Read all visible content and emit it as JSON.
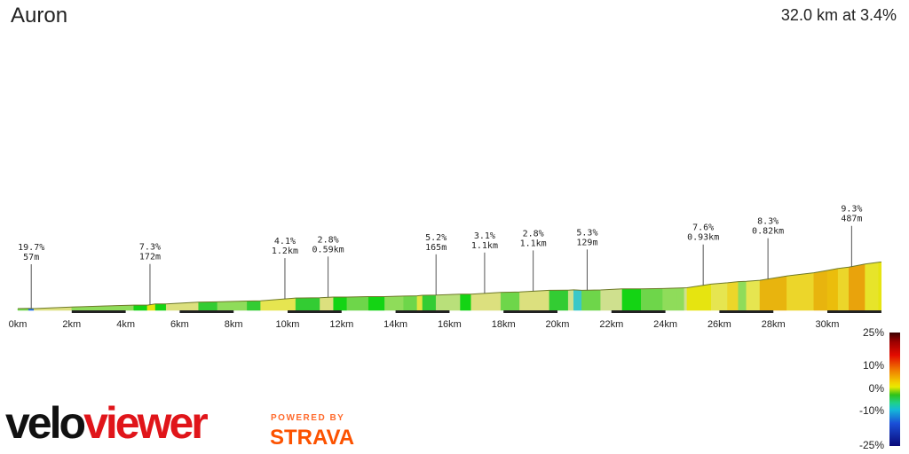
{
  "header": {
    "title": "Auron",
    "summary": "32.0 km at 3.4%"
  },
  "legend": {
    "ticks": [
      "25%",
      "10%",
      "0%",
      "-10%",
      "-25%"
    ]
  },
  "brand": {
    "velo": "velo",
    "viewer": "viewer",
    "powered_by": "POWERED BY",
    "strava": "STRAVA"
  },
  "chart_data": {
    "type": "area",
    "title": "Auron",
    "subtitle": "32.0 km at 3.4%",
    "x_unit": "km",
    "xlim": [
      0,
      32.0
    ],
    "x_ticks": [
      0,
      2,
      4,
      6,
      8,
      10,
      12,
      14,
      16,
      18,
      20,
      22,
      24,
      26,
      28,
      30
    ],
    "x_tick_labels": [
      "0km",
      "2km",
      "4km",
      "6km",
      "8km",
      "10km",
      "12km",
      "14km",
      "16km",
      "18km",
      "20km",
      "22km",
      "24km",
      "26km",
      "28km",
      "30km"
    ],
    "gradient_scale": {
      "min": -25,
      "max": 25,
      "labels": [
        "25%",
        "10%",
        "0%",
        "-10%",
        "-25%"
      ]
    },
    "segments": [
      {
        "x0": 0.0,
        "x1": 0.4,
        "grade": 1.0
      },
      {
        "x0": 0.4,
        "x1": 0.6,
        "grade": -8.0
      },
      {
        "x0": 0.6,
        "x1": 2.0,
        "grade": 3.0
      },
      {
        "x0": 2.0,
        "x1": 4.3,
        "grade": 1.5
      },
      {
        "x0": 4.3,
        "x1": 4.8,
        "grade": 0.0
      },
      {
        "x0": 4.8,
        "x1": 5.1,
        "grade": 7.3
      },
      {
        "x0": 5.1,
        "x1": 5.5,
        "grade": 0.0
      },
      {
        "x0": 5.5,
        "x1": 6.7,
        "grade": 3.0
      },
      {
        "x0": 6.7,
        "x1": 7.4,
        "grade": 0.5
      },
      {
        "x0": 7.4,
        "x1": 8.5,
        "grade": 1.5
      },
      {
        "x0": 8.5,
        "x1": 9.0,
        "grade": 0.5
      },
      {
        "x0": 9.0,
        "x1": 10.3,
        "grade": 4.1
      },
      {
        "x0": 10.3,
        "x1": 11.2,
        "grade": 0.5
      },
      {
        "x0": 11.2,
        "x1": 11.7,
        "grade": 2.8
      },
      {
        "x0": 11.7,
        "x1": 12.2,
        "grade": 0.0
      },
      {
        "x0": 12.2,
        "x1": 13.0,
        "grade": 1.0
      },
      {
        "x0": 13.0,
        "x1": 13.6,
        "grade": 0.0
      },
      {
        "x0": 13.6,
        "x1": 14.3,
        "grade": 1.5
      },
      {
        "x0": 14.3,
        "x1": 14.8,
        "grade": 1.0
      },
      {
        "x0": 14.8,
        "x1": 15.0,
        "grade": 5.2
      },
      {
        "x0": 15.0,
        "x1": 15.5,
        "grade": 0.5
      },
      {
        "x0": 15.5,
        "x1": 16.4,
        "grade": 2.0
      },
      {
        "x0": 16.4,
        "x1": 16.8,
        "grade": 0.0
      },
      {
        "x0": 16.8,
        "x1": 17.9,
        "grade": 3.1
      },
      {
        "x0": 17.9,
        "x1": 18.6,
        "grade": 1.0
      },
      {
        "x0": 18.6,
        "x1": 19.7,
        "grade": 2.8
      },
      {
        "x0": 19.7,
        "x1": 20.4,
        "grade": 0.5
      },
      {
        "x0": 20.4,
        "x1": 20.6,
        "grade": 2.5
      },
      {
        "x0": 20.6,
        "x1": 20.9,
        "grade": -3.0
      },
      {
        "x0": 20.9,
        "x1": 21.6,
        "grade": 1.0
      },
      {
        "x0": 21.6,
        "x1": 22.4,
        "grade": 2.5
      },
      {
        "x0": 22.4,
        "x1": 23.1,
        "grade": 0.0
      },
      {
        "x0": 23.1,
        "x1": 23.9,
        "grade": 1.0
      },
      {
        "x0": 23.9,
        "x1": 24.4,
        "grade": 1.5
      },
      {
        "x0": 24.4,
        "x1": 24.7,
        "grade": 1.5
      },
      {
        "x0": 24.7,
        "x1": 24.8,
        "grade": 2.5
      },
      {
        "x0": 24.8,
        "x1": 25.7,
        "grade": 7.6
      },
      {
        "x0": 25.7,
        "x1": 26.3,
        "grade": 4.0
      },
      {
        "x0": 26.3,
        "x1": 26.7,
        "grade": 5.5
      },
      {
        "x0": 26.7,
        "x1": 27.0,
        "grade": 1.5
      },
      {
        "x0": 27.0,
        "x1": 27.5,
        "grade": 4.0
      },
      {
        "x0": 27.5,
        "x1": 28.5,
        "grade": 8.3
      },
      {
        "x0": 28.5,
        "x1": 29.5,
        "grade": 6.0
      },
      {
        "x0": 29.5,
        "x1": 30.0,
        "grade": 8.5
      },
      {
        "x0": 30.0,
        "x1": 30.4,
        "grade": 9.3
      },
      {
        "x0": 30.4,
        "x1": 30.8,
        "grade": 6.0
      },
      {
        "x0": 30.8,
        "x1": 31.4,
        "grade": 10.0
      },
      {
        "x0": 31.4,
        "x1": 31.9,
        "grade": 6.5
      },
      {
        "x0": 31.9,
        "x1": 32.0,
        "grade": 7.0
      }
    ],
    "annotations": [
      {
        "x": 0.5,
        "grade": "19.7%",
        "length": "57m"
      },
      {
        "x": 4.9,
        "grade": "7.3%",
        "length": "172m"
      },
      {
        "x": 9.9,
        "grade": "4.1%",
        "length": "1.2km"
      },
      {
        "x": 11.5,
        "grade": "2.8%",
        "length": "0.59km"
      },
      {
        "x": 15.5,
        "grade": "5.2%",
        "length": "165m"
      },
      {
        "x": 17.3,
        "grade": "3.1%",
        "length": "1.1km"
      },
      {
        "x": 19.1,
        "grade": "2.8%",
        "length": "1.1km"
      },
      {
        "x": 21.1,
        "grade": "5.3%",
        "length": "129m"
      },
      {
        "x": 25.4,
        "grade": "7.6%",
        "length": "0.93km"
      },
      {
        "x": 27.8,
        "grade": "8.3%",
        "length": "0.82km"
      },
      {
        "x": 30.9,
        "grade": "9.3%",
        "length": "487m"
      }
    ]
  }
}
